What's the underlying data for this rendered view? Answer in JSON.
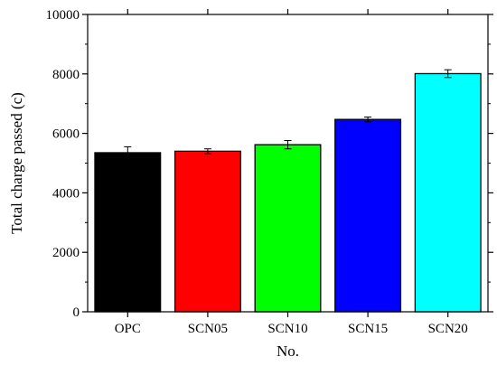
{
  "chart_data": {
    "type": "bar",
    "xlabel": "No.",
    "ylabel": "Total charge passed (c)",
    "ylim": [
      0,
      10000
    ],
    "yticks": [
      0,
      2000,
      4000,
      6000,
      8000,
      10000
    ],
    "grid": false,
    "categories": [
      "OPC",
      "SCN05",
      "SCN10",
      "SCN15",
      "SCN20"
    ],
    "values": [
      5350,
      5400,
      5620,
      6470,
      8010
    ],
    "errors": [
      200,
      80,
      140,
      80,
      130
    ],
    "colors": [
      "#000000",
      "#ff0000",
      "#00ff00",
      "#0000ff",
      "#00ffff"
    ]
  }
}
